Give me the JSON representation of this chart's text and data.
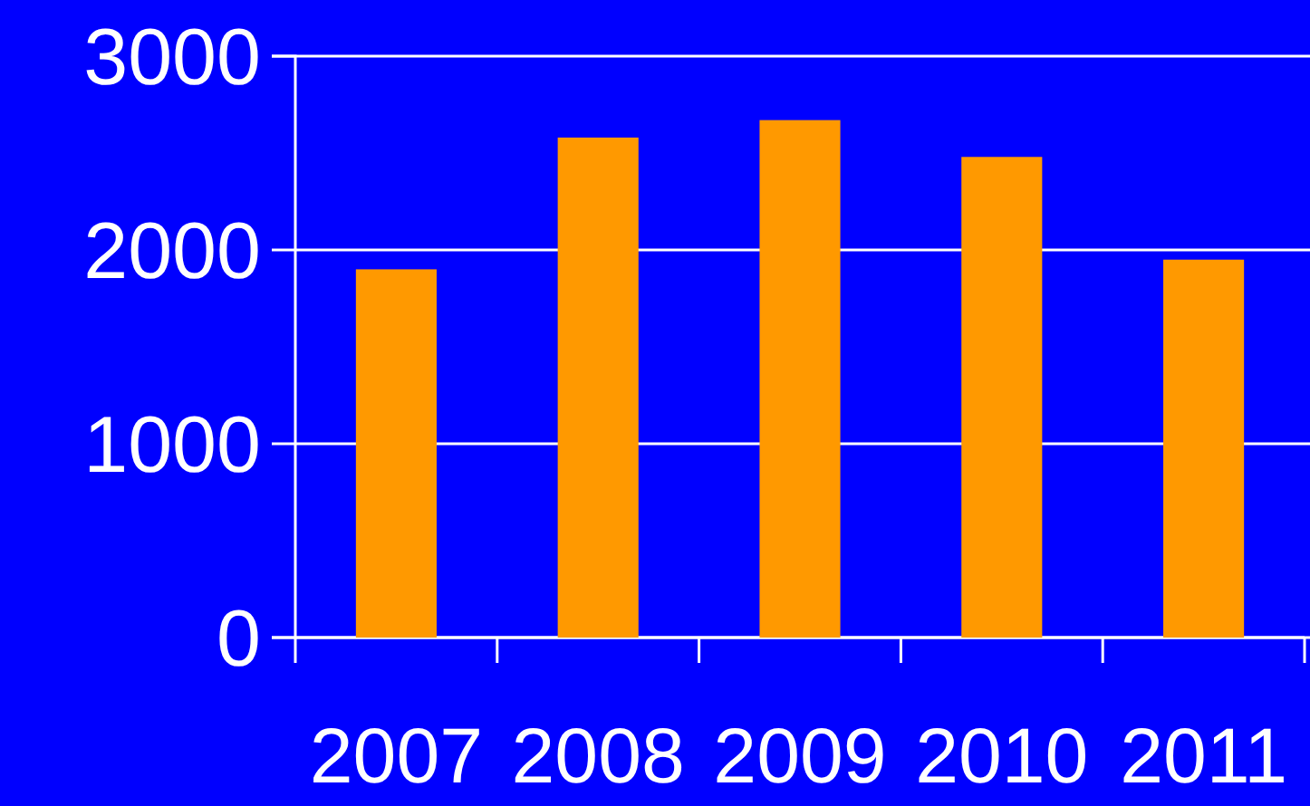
{
  "chart_data": {
    "type": "bar",
    "categories": [
      "2007",
      "2008",
      "2009",
      "2010",
      "2011"
    ],
    "values": [
      1900,
      2580,
      2670,
      2480,
      1950
    ],
    "color": "#ff9900",
    "ylim": [
      0,
      3000
    ],
    "yticks": [
      0,
      1000,
      2000,
      3000
    ],
    "grid": "y"
  }
}
